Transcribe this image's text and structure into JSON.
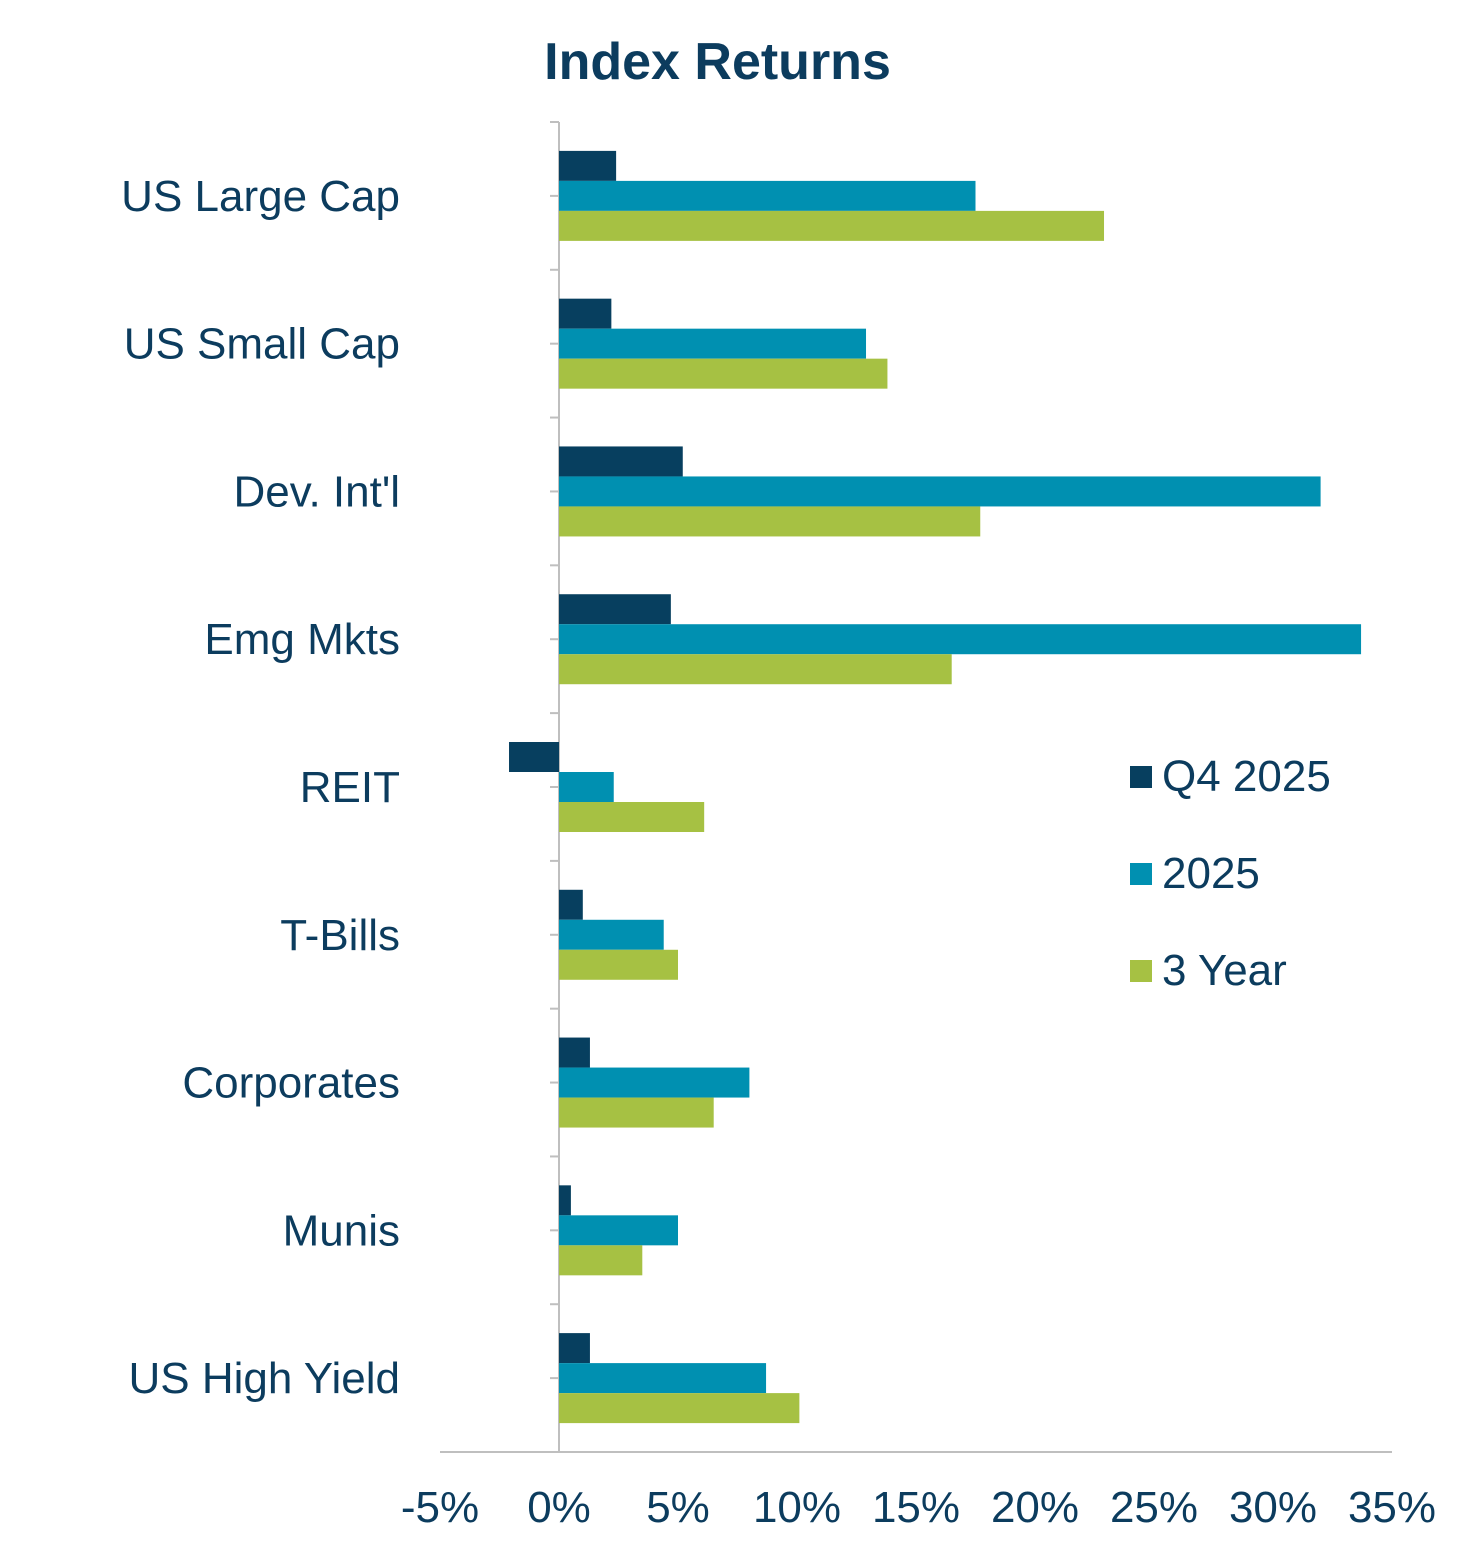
{
  "chart_data": {
    "type": "bar",
    "orientation": "horizontal",
    "title": "Index Returns",
    "categories": [
      "US Large Cap",
      "US Small Cap",
      "Dev. Int'l",
      "Emg Mkts",
      "REIT",
      "T-Bills",
      "Corporates",
      "Munis",
      "US High Yield"
    ],
    "series": [
      {
        "name": "Q4 2025",
        "color": "#073f5f",
        "values": [
          2.4,
          2.2,
          5.2,
          4.7,
          -2.1,
          1.0,
          1.3,
          0.5,
          1.3
        ]
      },
      {
        "name": "2025",
        "color": "#0090b1",
        "values": [
          17.5,
          12.9,
          32.0,
          33.7,
          2.3,
          4.4,
          8.0,
          5.0,
          8.7
        ]
      },
      {
        "name": "3 Year",
        "color": "#a6c143",
        "values": [
          22.9,
          13.8,
          17.7,
          16.5,
          6.1,
          5.0,
          6.5,
          3.5,
          10.1
        ]
      }
    ],
    "xlim": [
      -5,
      35
    ],
    "xticks": [
      -5,
      0,
      5,
      10,
      15,
      20,
      25,
      30,
      35
    ],
    "xtick_labels": [
      "-5%",
      "0%",
      "5%",
      "10%",
      "15%",
      "20%",
      "25%",
      "30%",
      "35%"
    ],
    "grid": false,
    "legend_position": "right"
  }
}
